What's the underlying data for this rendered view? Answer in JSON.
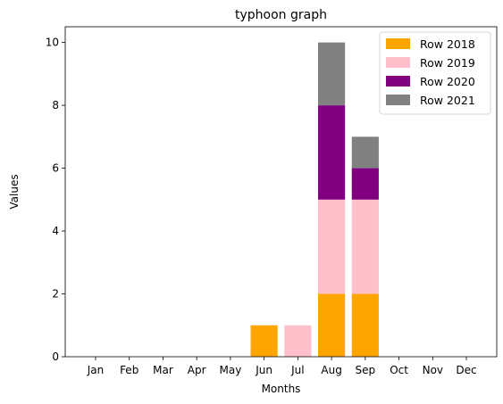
{
  "chart_data": {
    "type": "bar",
    "stacked": true,
    "title": "typhoon graph",
    "xlabel": "Months",
    "ylabel": "Values",
    "categories": [
      "Jan",
      "Feb",
      "Mar",
      "Apr",
      "May",
      "Jun",
      "Jul",
      "Aug",
      "Sep",
      "Oct",
      "Nov",
      "Dec"
    ],
    "ylim": [
      0,
      10.5
    ],
    "yticks": [
      0,
      2,
      4,
      6,
      8,
      10
    ],
    "grid": false,
    "legend": "top-right",
    "series": [
      {
        "name": "Row 2018",
        "color": "#ffa500",
        "values": [
          0,
          0,
          0,
          0,
          0,
          1,
          0,
          2,
          2,
          0,
          0,
          0
        ]
      },
      {
        "name": "Row 2019",
        "color": "#ffc0cb",
        "values": [
          0,
          0,
          0,
          0,
          0,
          0,
          1,
          3,
          3,
          0,
          0,
          0
        ]
      },
      {
        "name": "Row 2020",
        "color": "#800080",
        "values": [
          0,
          0,
          0,
          0,
          0,
          0,
          0,
          3,
          1,
          0,
          0,
          0
        ]
      },
      {
        "name": "Row 2021",
        "color": "#808080",
        "values": [
          0,
          0,
          0,
          0,
          0,
          0,
          0,
          2,
          1,
          0,
          0,
          0
        ]
      }
    ]
  }
}
